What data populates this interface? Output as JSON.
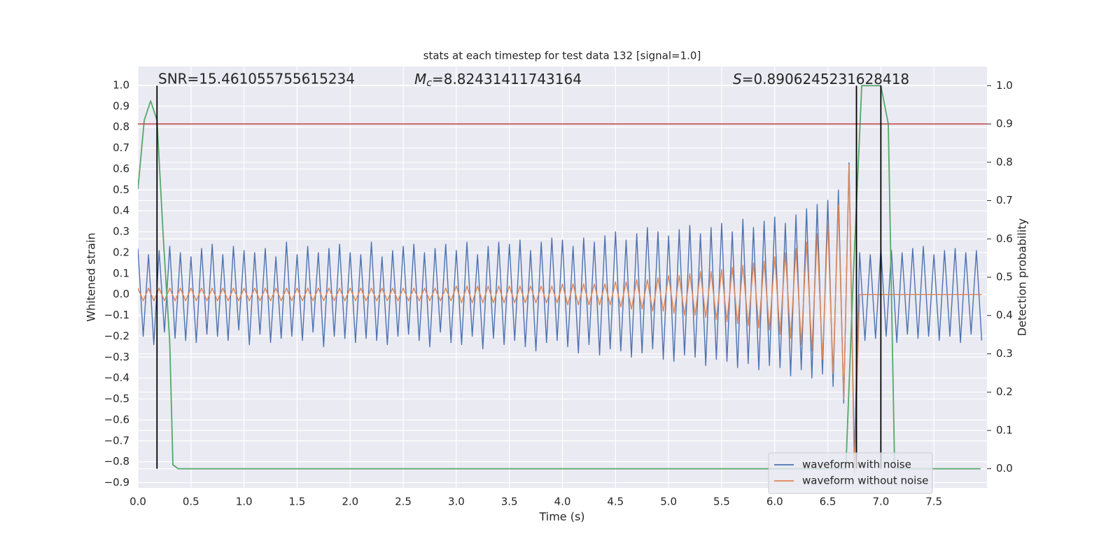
{
  "chart_data": {
    "type": "line",
    "title": "stats at each timestep for test data 132 [signal=1.0]",
    "xlabel": "Time (s)",
    "ylabel": "Whitened strain",
    "y2label": "Detection probability",
    "grid": true,
    "legend": "lower right",
    "xlim": [
      0,
      8.0
    ],
    "ylim": [
      -0.925,
      1.09
    ],
    "y2lim": [
      -0.05,
      1.05
    ],
    "xticks": [
      {
        "value": 0,
        "label": "0.0"
      },
      0.5,
      {
        "value": 1,
        "label": "1.0"
      },
      1.5,
      {
        "value": 2,
        "label": "2.0"
      },
      2.5,
      {
        "value": 3,
        "label": "3.0"
      },
      3.5,
      {
        "value": 4,
        "label": "4.0"
      },
      4.5,
      {
        "value": 5,
        "label": "5.0"
      },
      5.5,
      {
        "value": 6,
        "label": "6.0"
      },
      6.5,
      {
        "value": 7,
        "label": "7.0"
      },
      7.5
    ],
    "yticks": [
      {
        "value": 1,
        "label": "1.0"
      },
      0.9,
      0.8,
      0.7,
      0.6,
      0.5,
      0.4,
      0.3,
      0.2,
      0.1,
      {
        "value": 0,
        "label": "0.0"
      },
      {
        "value": -0.1,
        "label": "−0.1"
      },
      {
        "value": -0.2,
        "label": "−0.2"
      },
      {
        "value": -0.3,
        "label": "−0.3"
      },
      {
        "value": -0.4,
        "label": "−0.4"
      },
      {
        "value": -0.5,
        "label": "−0.5"
      },
      {
        "value": -0.6,
        "label": "−0.6"
      },
      {
        "value": -0.7,
        "label": "−0.7"
      },
      {
        "value": -0.8,
        "label": "−0.8"
      },
      {
        "value": -0.9,
        "label": "−0.9"
      }
    ],
    "y2ticks": [
      {
        "value": 0,
        "label": "0.0"
      },
      0.1,
      0.2,
      0.3,
      0.4,
      0.5,
      0.6,
      0.7,
      0.8,
      0.9,
      {
        "value": 1,
        "label": "1.0"
      }
    ],
    "annotations": [
      {
        "text": "SNR=15.461055755615234"
      },
      {
        "symbol": "M",
        "subscript": "c",
        "text": "=8.82431411743164"
      },
      {
        "symbol": "S",
        "text": "=0.8906245231628418"
      }
    ],
    "x": [
      0,
      0.05,
      0.1,
      0.15,
      0.2,
      0.25,
      0.3,
      0.35,
      0.4,
      0.45,
      0.5,
      0.55,
      0.6,
      0.65,
      0.7,
      0.75,
      0.8,
      0.85,
      0.9,
      0.95,
      1,
      1.05,
      1.1,
      1.15,
      1.2,
      1.25,
      1.3,
      1.35,
      1.4,
      1.45,
      1.5,
      1.55,
      1.6,
      1.65,
      1.7,
      1.75,
      1.8,
      1.85,
      1.9,
      1.95,
      2,
      2.05,
      2.1,
      2.15,
      2.2,
      2.25,
      2.3,
      2.35,
      2.4,
      2.45,
      2.5,
      2.55,
      2.6,
      2.65,
      2.7,
      2.75,
      2.8,
      2.85,
      2.9,
      2.95,
      3,
      3.05,
      3.1,
      3.15,
      3.2,
      3.25,
      3.3,
      3.35,
      3.4,
      3.45,
      3.5,
      3.55,
      3.6,
      3.65,
      3.7,
      3.75,
      3.8,
      3.85,
      3.9,
      3.95,
      4,
      4.05,
      4.1,
      4.15,
      4.2,
      4.25,
      4.3,
      4.35,
      4.4,
      4.45,
      4.5,
      4.55,
      4.6,
      4.65,
      4.7,
      4.75,
      4.8,
      4.85,
      4.9,
      4.95,
      5,
      5.05,
      5.1,
      5.15,
      5.2,
      5.25,
      5.3,
      5.35,
      5.4,
      5.45,
      5.5,
      5.55,
      5.6,
      5.65,
      5.7,
      5.75,
      5.8,
      5.85,
      5.9,
      5.95,
      6,
      6.05,
      6.1,
      6.15,
      6.2,
      6.25,
      6.3,
      6.35,
      6.4,
      6.45,
      6.5,
      6.55,
      6.6,
      6.65,
      6.7,
      6.75,
      6.8,
      6.85,
      6.9,
      6.95,
      7,
      7.05,
      7.1,
      7.15,
      7.2,
      7.25,
      7.3,
      7.35,
      7.4,
      7.45,
      7.5,
      7.55,
      7.6,
      7.65,
      7.7,
      7.75,
      7.8,
      7.85,
      7.9,
      7.95
    ],
    "series": [
      {
        "name": "waveform with noise",
        "color": "#4c72b0",
        "values": [
          0.22,
          -0.2,
          0.19,
          -0.24,
          0.21,
          -0.18,
          0.23,
          -0.21,
          0.2,
          -0.22,
          0.18,
          -0.23,
          0.22,
          -0.19,
          0.24,
          -0.2,
          0.19,
          -0.22,
          0.23,
          -0.17,
          0.21,
          -0.24,
          0.2,
          -0.19,
          0.22,
          -0.23,
          0.18,
          -0.21,
          0.25,
          -0.2,
          0.19,
          -0.22,
          0.23,
          -0.18,
          0.2,
          -0.25,
          0.22,
          -0.2,
          0.24,
          -0.21,
          0.2,
          -0.23,
          0.19,
          -0.21,
          0.25,
          -0.22,
          0.18,
          -0.24,
          0.21,
          -0.2,
          0.23,
          -0.19,
          0.24,
          -0.22,
          0.2,
          -0.25,
          0.22,
          -0.18,
          0.24,
          -0.23,
          0.21,
          -0.24,
          0.25,
          -0.2,
          0.19,
          -0.26,
          0.23,
          -0.21,
          0.25,
          -0.24,
          0.24,
          -0.22,
          0.26,
          -0.25,
          0.21,
          -0.27,
          0.25,
          -0.23,
          0.27,
          -0.22,
          0.26,
          -0.25,
          0.23,
          -0.28,
          0.27,
          -0.24,
          0.25,
          -0.29,
          0.28,
          -0.26,
          0.3,
          -0.27,
          0.26,
          -0.3,
          0.29,
          -0.28,
          0.32,
          -0.26,
          0.3,
          -0.31,
          0.28,
          -0.32,
          0.31,
          -0.29,
          0.33,
          -0.3,
          0.29,
          -0.34,
          0.32,
          -0.31,
          0.34,
          -0.32,
          0.3,
          -0.35,
          0.36,
          -0.33,
          0.32,
          -0.36,
          0.35,
          -0.34,
          0.37,
          -0.35,
          0.34,
          -0.39,
          0.38,
          -0.36,
          0.41,
          -0.4,
          0.43,
          -0.38,
          0.45,
          -0.44,
          0.5,
          -0.52,
          0.63,
          -0.78,
          0.2,
          -0.22,
          0.19,
          -0.21,
          0.22,
          -0.2,
          0.21,
          -0.23,
          0.2,
          -0.19,
          0.22,
          -0.21,
          0.23,
          -0.2,
          0.19,
          -0.22,
          0.21,
          -0.2,
          0.22,
          -0.23,
          0.2,
          -0.19,
          0.21,
          -0.22
        ]
      },
      {
        "name": "waveform without noise",
        "color": "#dd8452",
        "values": [
          0.03,
          -0.03,
          0.03,
          -0.03,
          0.03,
          -0.03,
          0.03,
          -0.03,
          0.03,
          -0.03,
          0.03,
          -0.03,
          0.03,
          -0.03,
          0.03,
          -0.03,
          0.03,
          -0.03,
          0.03,
          -0.03,
          0.03,
          -0.03,
          0.03,
          -0.03,
          0.03,
          -0.03,
          0.03,
          -0.03,
          0.03,
          -0.03,
          0.03,
          -0.03,
          0.03,
          -0.03,
          0.03,
          -0.03,
          0.03,
          -0.03,
          0.03,
          -0.03,
          0.03,
          -0.03,
          0.03,
          -0.03,
          0.03,
          -0.03,
          0.03,
          -0.03,
          0.03,
          -0.03,
          0.03,
          -0.03,
          0.03,
          -0.03,
          0.03,
          -0.03,
          0.03,
          -0.03,
          0.03,
          -0.03,
          0.04,
          -0.04,
          0.04,
          -0.04,
          0.04,
          -0.04,
          0.04,
          -0.04,
          0.04,
          -0.04,
          0.04,
          -0.04,
          0.04,
          -0.04,
          0.04,
          -0.04,
          0.04,
          -0.04,
          0.04,
          -0.04,
          0.05,
          -0.05,
          0.05,
          -0.05,
          0.05,
          -0.05,
          0.05,
          -0.05,
          0.05,
          -0.05,
          0.06,
          -0.06,
          0.06,
          -0.07,
          0.07,
          -0.07,
          0.07,
          -0.08,
          0.08,
          -0.08,
          0.09,
          -0.09,
          0.09,
          -0.1,
          0.1,
          -0.1,
          0.11,
          -0.11,
          0.11,
          -0.12,
          0.12,
          -0.13,
          0.13,
          -0.14,
          0.14,
          -0.15,
          0.15,
          -0.16,
          0.16,
          -0.17,
          0.18,
          -0.19,
          0.2,
          -0.21,
          0.22,
          -0.24,
          0.25,
          -0.27,
          0.29,
          -0.31,
          0.34,
          -0.38,
          0.43,
          -0.5,
          0.62,
          -0.85,
          0,
          0,
          0,
          0,
          0,
          0,
          0,
          0,
          0,
          0,
          0,
          0,
          0,
          0,
          0,
          0,
          0,
          0,
          0,
          0,
          0,
          0,
          0,
          0
        ]
      },
      {
        "color": "#55a868",
        "axis": "y2",
        "x": [
          0,
          0.06,
          0.12,
          0.18,
          0.24,
          0.3,
          0.33,
          0.38,
          6.6,
          6.67,
          6.74,
          6.82,
          6.9,
          7.0,
          7.07,
          7.13,
          7.94
        ],
        "values": [
          0.73,
          0.91,
          0.96,
          0.91,
          0.6,
          0.33,
          0.01,
          0,
          0,
          0,
          0.5,
          1,
          1,
          1,
          0.9,
          0,
          0
        ]
      }
    ],
    "threshold": {
      "value": 0.9,
      "axis": "y2",
      "color": "#c44e52"
    },
    "vlines": {
      "x": [
        0.18,
        6.77,
        7.0
      ],
      "y2_range": [
        0,
        1
      ],
      "color": "#000000"
    }
  }
}
